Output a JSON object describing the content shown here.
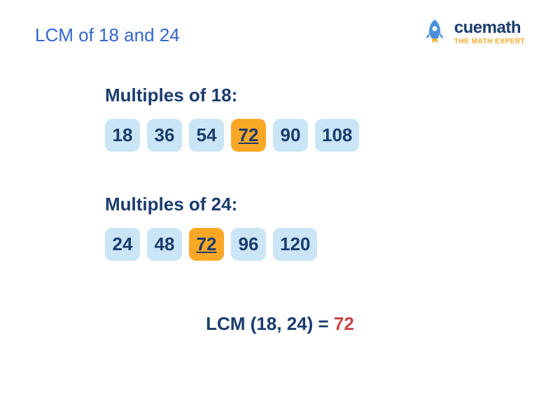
{
  "title": "LCM of 18 and 24",
  "logo": {
    "brand": "cuemath",
    "tagline": "THE MATH EXPERT"
  },
  "section18": {
    "label": "Multiples of 18:",
    "multiples": [
      {
        "value": "18",
        "highlight": false
      },
      {
        "value": "36",
        "highlight": false
      },
      {
        "value": "54",
        "highlight": false
      },
      {
        "value": "72",
        "highlight": true
      },
      {
        "value": "90",
        "highlight": false
      },
      {
        "value": "108",
        "highlight": false
      }
    ]
  },
  "section24": {
    "label": "Multiples of 24:",
    "multiples": [
      {
        "value": "24",
        "highlight": false
      },
      {
        "value": "48",
        "highlight": false
      },
      {
        "value": "72",
        "highlight": true
      },
      {
        "value": "96",
        "highlight": false
      },
      {
        "value": "120",
        "highlight": false
      }
    ]
  },
  "result": {
    "label": "LCM (18, 24) = ",
    "value": "72"
  },
  "colors": {
    "title_color": "#3366cc",
    "text_color": "#1a3c6e",
    "box_bg": "#cae5f5",
    "highlight_bg": "#f9a826",
    "result_value_color": "#c94545",
    "background": "#ffffff"
  }
}
